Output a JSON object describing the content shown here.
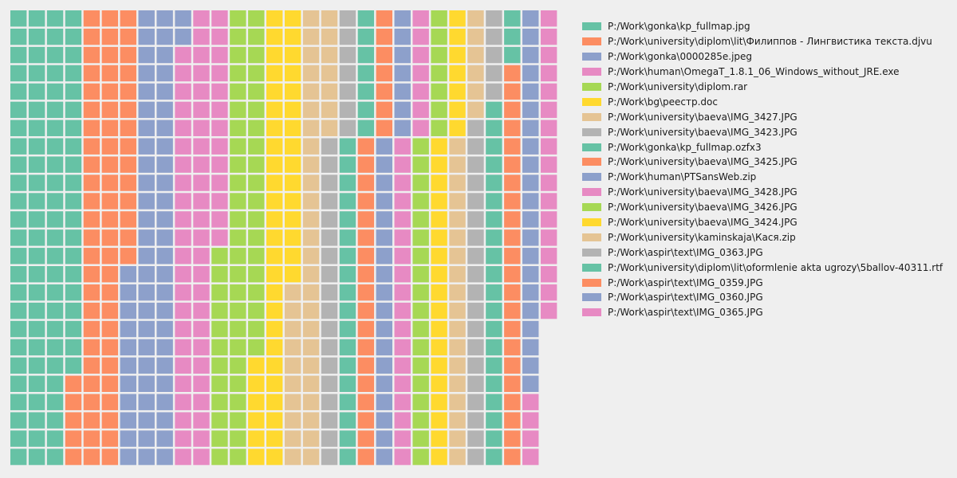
{
  "chart_data": {
    "type": "waffle",
    "title": "",
    "grid": {
      "rows": 25,
      "columns": 30
    },
    "series": [
      {
        "name": "P:/Work\\gonka\\kp_fullmap.jpg",
        "color": "#66c2a5",
        "value": 95
      },
      {
        "name": "P:/Work\\university\\diplom\\lit\\Филиппов - Лингвистика текста.djvu",
        "color": "#fc8d62",
        "value": 69
      },
      {
        "name": "P:/Work\\gonka\\0000285e.jpeg",
        "color": "#8da0cb",
        "value": 63
      },
      {
        "name": "P:/Work\\human\\OmegaT_1.8.1_06_Windows_without_JRE.exe",
        "color": "#e78ac3",
        "value": 61
      },
      {
        "name": "P:/Work\\university\\diplom.rar",
        "color": "#a6d854",
        "value": 56
      },
      {
        "name": "P:/Work\\bg\\реестр.doc",
        "color": "#ffd92f",
        "value": 46
      },
      {
        "name": "P:/Work\\university\\baeva\\IMG_3427.JPG",
        "color": "#e5c494",
        "value": 42
      },
      {
        "name": "P:/Work\\university\\baeva\\IMG_3423.JPG",
        "color": "#b3b3b3",
        "value": 25
      },
      {
        "name": "P:/Work\\gonka\\kp_fullmap.ozfx3",
        "color": "#66c2a5",
        "value": 25
      },
      {
        "name": "P:/Work\\university\\baeva\\IMG_3425.JPG",
        "color": "#fc8d62",
        "value": 25
      },
      {
        "name": "P:/Work\\human\\PTSansWeb.zip",
        "color": "#8da0cb",
        "value": 25
      },
      {
        "name": "P:/Work\\university\\baeva\\IMG_3428.JPG",
        "color": "#e78ac3",
        "value": 25
      },
      {
        "name": "P:/Work\\university\\baeva\\IMG_3426.JPG",
        "color": "#a6d854",
        "value": 25
      },
      {
        "name": "P:/Work\\university\\baeva\\IMG_3424.JPG",
        "color": "#ffd92f",
        "value": 25
      },
      {
        "name": "P:/Work\\university\\kaminskaja\\Кася.zip",
        "color": "#e5c494",
        "value": 24
      },
      {
        "name": "P:/Work\\aspir\\text\\IMG_0363.JPG",
        "color": "#b3b3b3",
        "value": 24
      },
      {
        "name": "P:/Work\\university\\diplom\\lit\\oformlenie akta ugrozy\\5ballov-40311.rtf",
        "color": "#66c2a5",
        "value": 23
      },
      {
        "name": "P:/Work\\aspir\\text\\IMG_0359.JPG",
        "color": "#fc8d62",
        "value": 22
      },
      {
        "name": "P:/Work\\aspir\\text\\IMG_0360.JPG",
        "color": "#8da0cb",
        "value": 21
      },
      {
        "name": "P:/Work\\aspir\\text\\IMG_0365.JPG",
        "color": "#e78ac3",
        "value": 21
      }
    ]
  }
}
